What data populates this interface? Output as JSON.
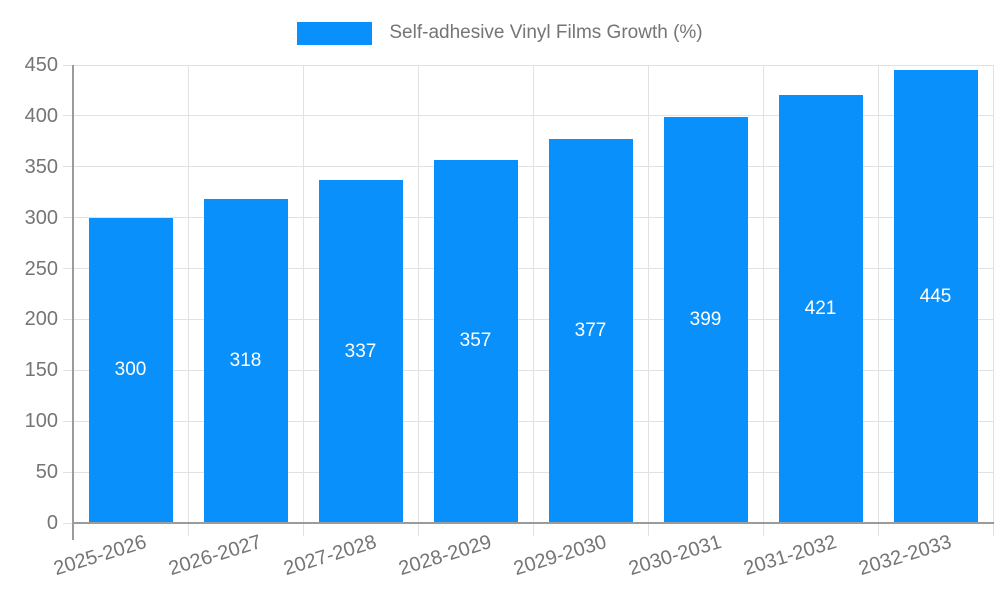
{
  "legend": {
    "label": "Self-adhesive Vinyl Films Growth (%)"
  },
  "chart_data": {
    "type": "bar",
    "title": "Self-adhesive Vinyl Films Growth (%)",
    "categories": [
      "2025-2026",
      "2026-2027",
      "2027-2028",
      "2028-2029",
      "2029-2030",
      "2030-2031",
      "2031-2032",
      "2032-2033"
    ],
    "values": [
      300,
      318,
      337,
      357,
      377,
      399,
      421,
      445
    ],
    "xlabel": "",
    "ylabel": "",
    "ylim": [
      0,
      450
    ],
    "yticks": [
      0,
      50,
      100,
      150,
      200,
      250,
      300,
      350,
      400,
      450
    ],
    "grid": true,
    "legend_position": "top",
    "x_label_rotation": -17,
    "bar_color": "#0a90fb",
    "value_label_color": "#ffffff",
    "axis_text_color": "#757575",
    "grid_color": "#e2e2e2",
    "axis_line_color": "#9b9b9b"
  }
}
